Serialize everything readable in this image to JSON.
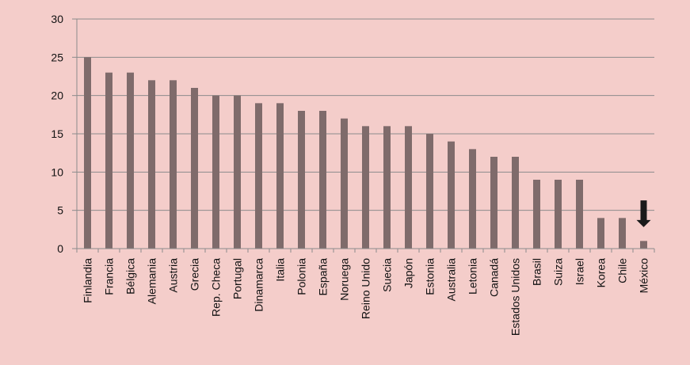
{
  "chart_data": {
    "type": "bar",
    "title": "",
    "xlabel": "",
    "ylabel": "",
    "ylim": [
      0,
      30
    ],
    "yticks": [
      0,
      5,
      10,
      15,
      20,
      25,
      30
    ],
    "grid": true,
    "legend": "none",
    "bar_color": "#7f6b6b",
    "grid_color": "#8c8c8c",
    "categories": [
      "Finlandia",
      "Francia",
      "Bélgica",
      "Alemania",
      "Austria",
      "Grecia",
      "Rep. Checa",
      "Portugal",
      "Dinamarca",
      "Italia",
      "Polonia",
      "España",
      "Noruega",
      "Reino Unido",
      "Suecia",
      "Japón",
      "Estonia",
      "Australia",
      "Letonia",
      "Canadá",
      "Estados Unidos",
      "Brasil",
      "Suiza",
      "Israel",
      "Korea",
      "Chile",
      "México"
    ],
    "values": [
      25,
      23,
      23,
      22,
      22,
      21,
      20,
      20,
      19,
      19,
      18,
      18,
      17,
      16,
      16,
      16,
      15,
      14,
      13,
      12,
      12,
      9,
      9,
      9,
      4,
      4,
      1
    ],
    "annotation": {
      "category": "México",
      "icon": "down-arrow-icon",
      "color": "#1a1a1a",
      "from_value": 6.3,
      "to_value": 2.8
    }
  }
}
